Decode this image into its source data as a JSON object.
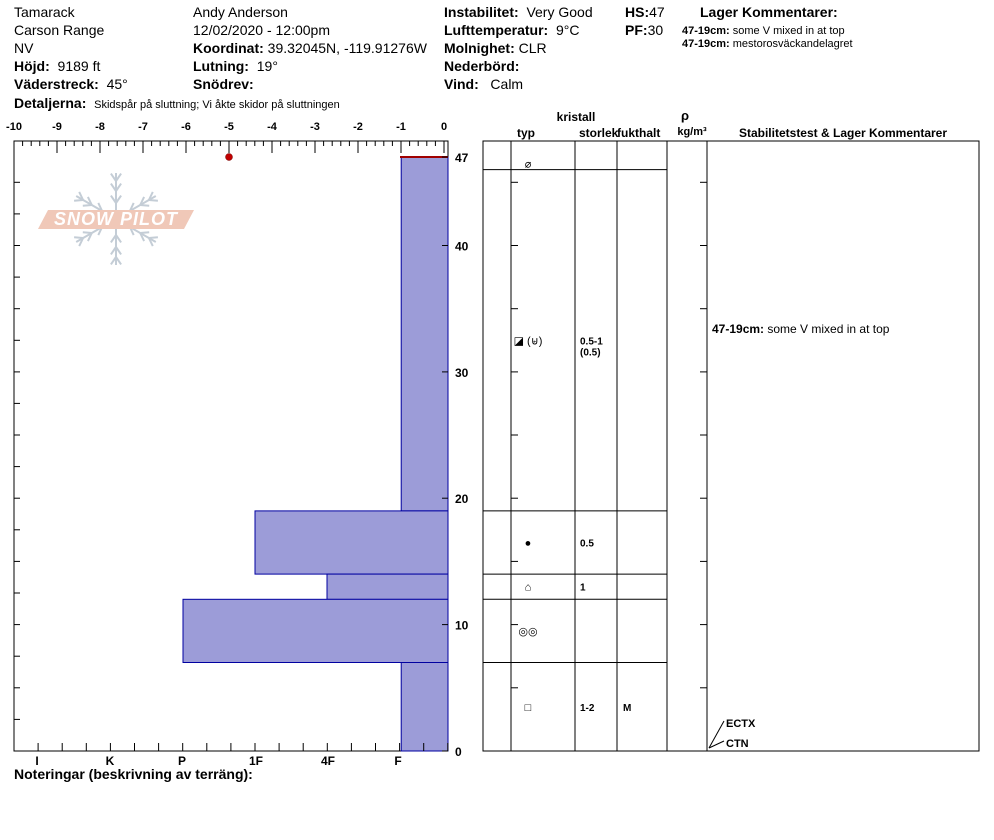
{
  "header": {
    "location_name": "Tamarack",
    "range": "Carson Range",
    "state": "NV",
    "elevation_label": "Höjd:",
    "elevation_value": "9189 ft",
    "aspect_label": "Väderstreck:",
    "aspect_value": "45°",
    "details_label": "Detaljerna:",
    "details_value": "Skidspår på sluttning;  Vi åkte skidor på sluttningen",
    "observer": "Andy Anderson",
    "datetime": "12/02/2020 - 12:00pm",
    "coord_label": "Koordinat:",
    "coord_value": "39.32045N, -119.91276W",
    "slope_label": "Lutning:",
    "slope_value": "19°",
    "wind_loading_label": "Snödrev:",
    "instability_label": "Instabilitet:",
    "instability_value": "Very Good",
    "air_temp_label": "Lufttemperatur:",
    "air_temp_value": "9°C",
    "sky_label": "Molnighet:",
    "sky_value": "CLR",
    "precip_label": "Nederbörd:",
    "wind_label": "Vind:",
    "wind_value": "Calm",
    "hs_label": "HS:",
    "hs_value": "47",
    "pf_label": "PF:",
    "pf_value": "30",
    "layer_comments_title": "Lager Kommentarer:",
    "layer_comments": [
      {
        "range": "47-19cm:",
        "text": "some V mixed in at top"
      },
      {
        "range": "47-19cm:",
        "text": "mestorosväckandelagret"
      }
    ]
  },
  "logo_text": "SNOW PILOT",
  "columns": {
    "typ": "typ",
    "kristall": "kristall",
    "storlek": "storlek",
    "fukthalt": "fukthalt",
    "rho": "ρ",
    "density_unit": "kg/m³",
    "stability": "Stabilitetstest & Lager Kommentarer"
  },
  "notes_label": "Noteringar (beskrivning av terräng):",
  "colors": {
    "hardness_fill": "#9c9cd8",
    "hardness_stroke": "#0000a0",
    "surface_line": "#a00000",
    "temp_point": "#c00000",
    "logo": "#f0c8b8"
  },
  "chart_data": {
    "type": "bar",
    "orientation": "horizontal",
    "x_top_ticks": [
      "-10",
      "-9",
      "-8",
      "-7",
      "-6",
      "-5",
      "-4",
      "-3",
      "-2",
      "-1",
      "0"
    ],
    "temperature_axis": [
      -10,
      0
    ],
    "hardness_ticks": [
      "I",
      "K",
      "P",
      "1F",
      "4F",
      "F"
    ],
    "hardness_tick_values": [
      5,
      4,
      3,
      2,
      1,
      0
    ],
    "height_ticks": [
      "0",
      "10",
      "20",
      "30",
      "40",
      "47"
    ],
    "height_tick_values": [
      0,
      10,
      20,
      30,
      40,
      47
    ],
    "height_range": [
      0,
      47
    ],
    "series": [
      {
        "layers": [
          {
            "top": 47,
            "bottom": 19,
            "hardness": "F",
            "hardness_value": 0.65
          },
          {
            "top": 19,
            "bottom": 14,
            "hardness": "4F",
            "hardness_value": 2.68
          },
          {
            "top": 14,
            "bottom": 12,
            "hardness": "F+",
            "hardness_value": 1.68
          },
          {
            "top": 12,
            "bottom": 7,
            "hardness": "1F-",
            "hardness_value": 3.68
          },
          {
            "top": 7,
            "bottom": 0,
            "hardness": "F",
            "hardness_value": 0.65
          }
        ]
      }
    ],
    "surface_temperature": {
      "height": 47,
      "temp": -5
    },
    "grain_layers": [
      {
        "top": 47,
        "bottom": 46,
        "symbol": "⌀",
        "size": "",
        "moisture": ""
      },
      {
        "top": 46,
        "bottom": 19,
        "symbol": "◪ (⊌)",
        "size": "0.5-1",
        "size2": "(0.5)",
        "moisture": ""
      },
      {
        "top": 19,
        "bottom": 14,
        "symbol": "●",
        "size": "0.5",
        "moisture": ""
      },
      {
        "top": 14,
        "bottom": 12,
        "symbol": "⌂",
        "size": "1",
        "moisture": ""
      },
      {
        "top": 12,
        "bottom": 7,
        "symbol": "◎◎",
        "size": "",
        "moisture": ""
      },
      {
        "top": 7,
        "bottom": 0,
        "symbol": "□",
        "size": "1-2",
        "moisture": "M"
      }
    ],
    "stability_comments": [
      {
        "height": 33,
        "range": "47-19cm:",
        "text": "some V mixed in at top"
      }
    ],
    "stability_tests": [
      "ECTX",
      "CTN"
    ]
  }
}
